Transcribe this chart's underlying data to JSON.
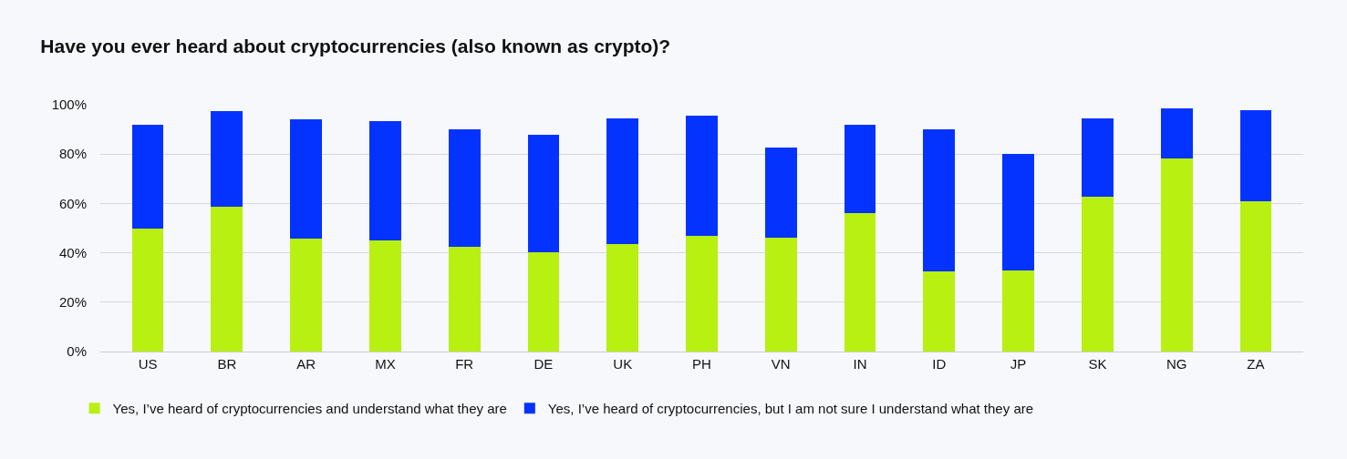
{
  "chart_data": {
    "type": "bar",
    "title": "Have you ever heard about cryptocurrencies (also known as crypto)?",
    "categories": [
      "US",
      "BR",
      "AR",
      "MX",
      "FR",
      "DE",
      "UK",
      "PH",
      "VN",
      "IN",
      "ID",
      "JP",
      "SK",
      "NG",
      "ZA"
    ],
    "stacked": true,
    "series": [
      {
        "name": "Yes, I’ve heard of cryptocurrencies and understand what they are",
        "color": "#b8f011",
        "values": [
          50,
          58.6,
          45.9,
          45,
          42.5,
          40.3,
          43.7,
          47,
          46.3,
          56,
          32.5,
          32.8,
          62.7,
          78.4,
          60.8
        ]
      },
      {
        "name": "Yes, I’ve heard of cryptocurrencies, but I am not sure I understand what they are",
        "color": "#0433ff",
        "values": [
          41.8,
          38.8,
          48.1,
          48.3,
          47.5,
          47.4,
          50.7,
          48.5,
          36.2,
          35.8,
          57.5,
          47.1,
          31.7,
          20.1,
          37
        ]
      }
    ],
    "ylim": [
      0,
      100
    ],
    "yticks": [
      {
        "value": 0,
        "label": "0%"
      },
      {
        "value": 20,
        "label": "20%"
      },
      {
        "value": 40,
        "label": "40%"
      },
      {
        "value": 60,
        "label": "60%"
      },
      {
        "value": 80,
        "label": "80%"
      },
      {
        "value": 100,
        "label": "100%"
      }
    ],
    "grid": "y",
    "legend": "bottom"
  }
}
